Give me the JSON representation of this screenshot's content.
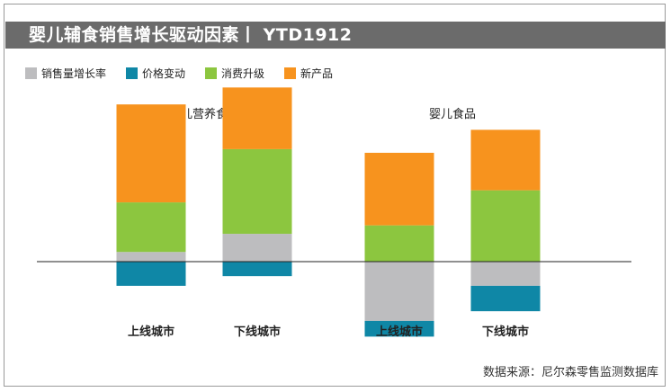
{
  "title": "婴儿辅食销售增长驱动因素丨 YTD1912",
  "source": "数据来源：尼尔森零售监测数据库",
  "colors": {
    "sales_volume_growth": "#bdbdbf",
    "price_change": "#0f87a6",
    "consumption_upgrade": "#8cc63f",
    "new_products": "#f7931e",
    "title_bg": "#6b6b6b",
    "axis": "#222222"
  },
  "chart_data": {
    "type": "bar",
    "stacked": true,
    "title": "婴儿辅食销售增长驱动因素丨 YTD1912",
    "legend": [
      "销售量增长率",
      "价格变动",
      "消费升级",
      "新产品"
    ],
    "legend_position": "top-left",
    "groups": [
      {
        "name": "婴儿营养食品",
        "categories": [
          "上线城市",
          "下线城市"
        ]
      },
      {
        "name": "婴儿食品",
        "categories": [
          "上线城市",
          "下线城市"
        ]
      }
    ],
    "categories": [
      "上线城市",
      "下线城市",
      "上线城市",
      "下线城市"
    ],
    "series": [
      {
        "name": "销售量增长率",
        "key": "sales_volume_growth",
        "values": [
          0.8,
          2.3,
          -4.9,
          -2.0
        ]
      },
      {
        "name": "价格变动",
        "key": "price_change",
        "values": [
          -2.0,
          -1.2,
          -1.3,
          -2.1
        ]
      },
      {
        "name": "消费升级",
        "key": "consumption_upgrade",
        "values": [
          4.1,
          7.0,
          3.0,
          5.9
        ]
      },
      {
        "name": "新产品",
        "key": "new_products",
        "values": [
          8.1,
          5.1,
          6.0,
          5.0
        ]
      }
    ],
    "ylim": [
      -6.2,
      14.2
    ],
    "grid": false,
    "xlabel": "",
    "ylabel": ""
  }
}
